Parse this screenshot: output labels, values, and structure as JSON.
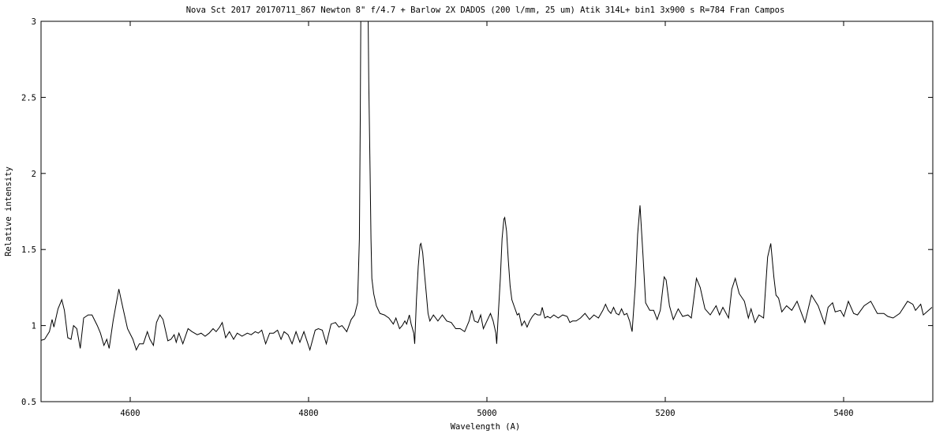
{
  "chart_data": {
    "type": "line",
    "title": "Nova Sct 2017  20170711_867  Newton 8\" f/4.7 + Barlow 2X   DADOS (200 l/mm, 25 um)   Atik 314L+ bin1   3x900 s   R=784    Fran Campos",
    "xlabel": "Wavelength (A)",
    "ylabel": "Relative intensity",
    "xlim": [
      4500,
      5500
    ],
    "ylim": [
      0.5,
      3
    ],
    "xticks": [
      4600,
      4800,
      5000,
      5200,
      5400
    ],
    "xtick_labels": [
      "4600",
      "4800",
      "5000",
      "5200",
      "5400"
    ],
    "yticks": [
      0.5,
      1,
      1.5,
      2,
      2.5,
      3
    ],
    "ytick_labels": [
      "0.5",
      "1",
      "1.5",
      "2",
      "2.5",
      "3"
    ],
    "grid": false,
    "line_color": "#000000",
    "series": [
      {
        "x": [
          4498.2,
          4504,
          4509.4,
          4512.4,
          4514.4,
          4519,
          4523.3,
          4526.2,
          4530,
          4533.6,
          4536.5,
          4540.1,
          4544,
          4547.8,
          4552.8,
          4557.2,
          4563.1,
          4566.6,
          4570.5,
          4573.7,
          4576.4,
          4580.8,
          4587.3,
          4592,
          4597,
          4603,
          4606.8,
          4610.3,
          4614.7,
          4619.2,
          4622.1,
          4626,
          4629.5,
          4633.3,
          4636.8,
          4642.2,
          4645.7,
          4649.3,
          4651.6,
          4654.6,
          4659,
          4664.9,
          4669.3,
          4675.2,
          4679.6,
          4684,
          4688.5,
          4692.9,
          4696.4,
          4700.3,
          4703.2,
          4707,
          4711.2,
          4715.9,
          4720,
          4725.4,
          4731.3,
          4735.7,
          4740.2,
          4743.6,
          4747.5,
          4751.9,
          4756.4,
          4760.8,
          4765.2,
          4769.1,
          4772.6,
          4777,
          4781.5,
          4785.9,
          4790.3,
          4794.8,
          4801.5,
          4807.4,
          4811,
          4815.4,
          4819.9,
          4825.2,
          4830.2,
          4834,
          4837.5,
          4842.8,
          4847.8,
          4851.6,
          4855,
          4857,
          4858,
          4859,
          4866,
          4867.5,
          4869,
          4870,
          4871,
          4873,
          4876,
          4880,
          4885,
          4890,
          4895,
          4898,
          4902,
          4905,
          4908,
          4910,
          4913,
          4915,
          4918,
          4919,
          4921,
          4923,
          4925,
          4926,
          4928,
          4930,
          4932,
          4934,
          4936,
          4940,
          4945,
          4950,
          4955,
          4960,
          4965,
          4970,
          4975,
          4980,
          4983,
          4986,
          4990,
          4993,
          4996,
          5000,
          5004,
          5007,
          5010,
          5011,
          5013,
          5015,
          5017,
          5019,
          5020,
          5022,
          5024,
          5026,
          5028,
          5031,
          5034,
          5036,
          5039,
          5042,
          5045,
          5048,
          5051,
          5054,
          5057,
          5060,
          5062,
          5065,
          5068,
          5071,
          5075,
          5080,
          5085,
          5090,
          5093,
          5096,
          5100,
          5105,
          5110,
          5115,
          5120,
          5125,
          5130,
          5133,
          5136,
          5139,
          5142,
          5145,
          5148,
          5151,
          5154,
          5157,
          5160,
          5162.8,
          5166.4,
          5169,
          5171.7,
          5175,
          5178,
          5182.6,
          5187,
          5190.9,
          5194.4,
          5198.8,
          5201,
          5204.7,
          5209,
          5214.5,
          5219.5,
          5225.4,
          5229.2,
          5235,
          5239.2,
          5244.5,
          5250.4,
          5257,
          5260.8,
          5264.6,
          5271,
          5274.6,
          5278.5,
          5282.9,
          5288.8,
          5293.2,
          5296.2,
          5300.6,
          5305,
          5310.3,
          5314.8,
          5318.3,
          5321.8,
          5324.2,
          5327.1,
          5330.7,
          5336,
          5341.9,
          5347.8,
          5356.6,
          5364,
          5371.4,
          5378.8,
          5382.6,
          5387.6,
          5390.5,
          5396.5,
          5400.3,
          5405.3,
          5411.2,
          5415.6,
          5423,
          5430.4,
          5437.8,
          5445.1,
          5449.6,
          5455.5,
          5462.9,
          5471.7,
          5477.6,
          5480.6,
          5486.5,
          5489.4,
          5495.3,
          5499
        ],
        "y": [
          0.9,
          0.91,
          0.96,
          1.04,
          0.99,
          1.11,
          1.17,
          1.1,
          0.92,
          0.91,
          1.0,
          0.98,
          0.85,
          1.05,
          1.07,
          1.07,
          1.0,
          0.95,
          0.87,
          0.91,
          0.85,
          1.03,
          1.24,
          1.11,
          0.98,
          0.91,
          0.84,
          0.88,
          0.88,
          0.96,
          0.91,
          0.87,
          1.02,
          1.07,
          1.04,
          0.9,
          0.91,
          0.94,
          0.89,
          0.95,
          0.88,
          0.98,
          0.96,
          0.94,
          0.95,
          0.93,
          0.95,
          0.98,
          0.96,
          0.99,
          1.02,
          0.92,
          0.96,
          0.91,
          0.95,
          0.93,
          0.95,
          0.94,
          0.96,
          0.95,
          0.97,
          0.88,
          0.95,
          0.95,
          0.97,
          0.91,
          0.96,
          0.94,
          0.88,
          0.96,
          0.89,
          0.96,
          0.84,
          0.97,
          0.98,
          0.97,
          0.88,
          1.01,
          1.02,
          0.99,
          1.0,
          0.96,
          1.04,
          1.07,
          1.15,
          1.57,
          2.35,
          3.5,
          3.5,
          2.6,
          2.0,
          1.57,
          1.31,
          1.21,
          1.13,
          1.08,
          1.07,
          1.05,
          1.01,
          1.05,
          0.98,
          1.0,
          1.03,
          1.01,
          1.07,
          1.01,
          0.95,
          0.88,
          1.17,
          1.39,
          1.53,
          1.54,
          1.48,
          1.34,
          1.21,
          1.08,
          1.03,
          1.07,
          1.03,
          1.07,
          1.03,
          1.02,
          0.98,
          0.98,
          0.96,
          1.03,
          1.1,
          1.03,
          1.02,
          1.07,
          0.98,
          1.03,
          1.08,
          1.03,
          0.95,
          0.88,
          1.1,
          1.31,
          1.57,
          1.7,
          1.71,
          1.62,
          1.43,
          1.26,
          1.17,
          1.12,
          1.07,
          1.08,
          1.0,
          1.03,
          0.99,
          1.03,
          1.06,
          1.08,
          1.07,
          1.07,
          1.12,
          1.05,
          1.06,
          1.05,
          1.07,
          1.05,
          1.07,
          1.06,
          1.02,
          1.03,
          1.03,
          1.05,
          1.08,
          1.04,
          1.07,
          1.05,
          1.1,
          1.14,
          1.1,
          1.08,
          1.12,
          1.08,
          1.07,
          1.11,
          1.07,
          1.08,
          1.03,
          0.96,
          1.26,
          1.6,
          1.79,
          1.46,
          1.15,
          1.1,
          1.1,
          1.04,
          1.1,
          1.32,
          1.3,
          1.13,
          1.04,
          1.11,
          1.06,
          1.07,
          1.05,
          1.31,
          1.25,
          1.11,
          1.07,
          1.13,
          1.07,
          1.12,
          1.05,
          1.24,
          1.31,
          1.21,
          1.16,
          1.05,
          1.11,
          1.02,
          1.07,
          1.05,
          1.45,
          1.54,
          1.32,
          1.2,
          1.18,
          1.09,
          1.13,
          1.1,
          1.16,
          1.02,
          1.2,
          1.13,
          1.01,
          1.12,
          1.15,
          1.09,
          1.1,
          1.06,
          1.16,
          1.08,
          1.07,
          1.13,
          1.16,
          1.08,
          1.08,
          1.06,
          1.05,
          1.08,
          1.16,
          1.14,
          1.1,
          1.14,
          1.07,
          1.1,
          1.12
        ]
      }
    ]
  }
}
